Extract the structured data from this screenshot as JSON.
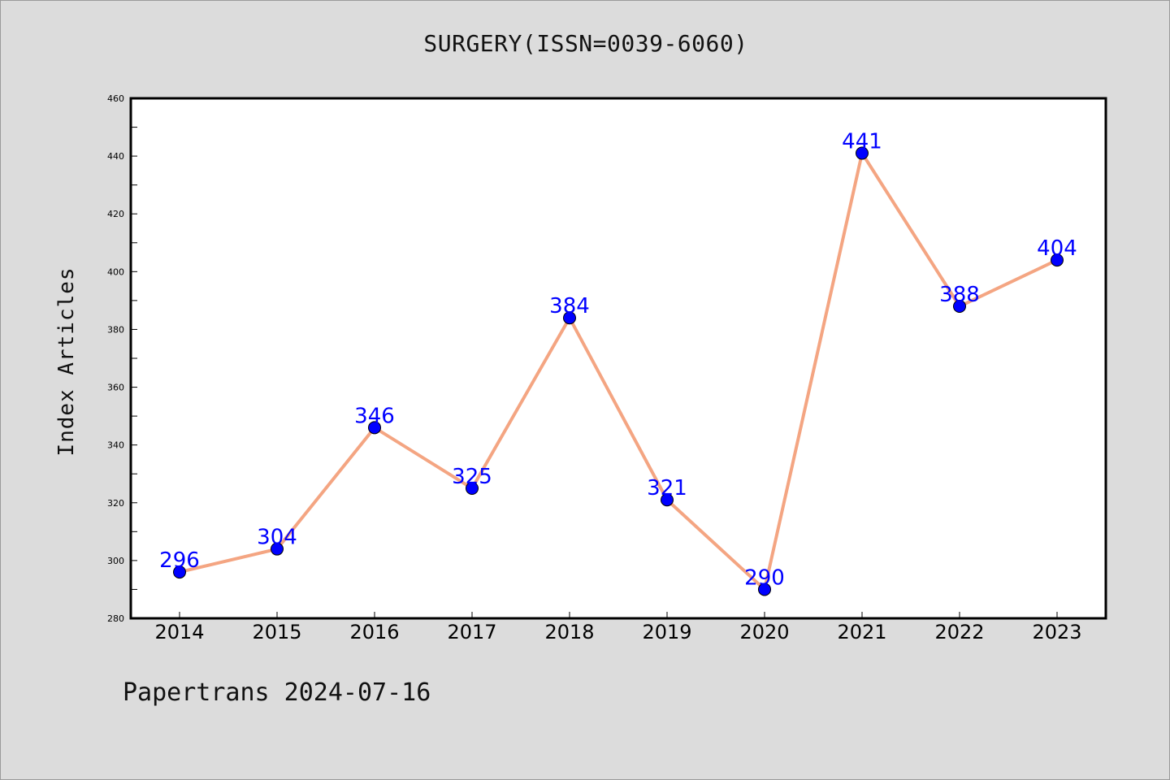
{
  "chart_data": {
    "type": "line",
    "title": "SURGERY(ISSN=0039-6060)",
    "ylabel": "Index Articles",
    "xlabel": "",
    "categories": [
      "2014",
      "2015",
      "2016",
      "2017",
      "2018",
      "2019",
      "2020",
      "2021",
      "2022",
      "2023"
    ],
    "series": [
      {
        "values": [
          296,
          304,
          346,
          325,
          384,
          321,
          290,
          441,
          388,
          404
        ]
      }
    ],
    "data_labels": [
      "296",
      "304",
      "346",
      "325",
      "384",
      "321",
      "290",
      "441",
      "388",
      "404"
    ],
    "ylim": [
      280,
      460
    ],
    "yticks": [
      280,
      300,
      320,
      340,
      360,
      380,
      400,
      420,
      440,
      460
    ],
    "line_color": "#f4a582",
    "marker_color": "#0000ff",
    "label_color": "#0000ff",
    "background": "#dcdcdc",
    "plot_background": "#ffffff",
    "grid": false
  },
  "footer": {
    "text": "Papertrans 2024-07-16"
  }
}
